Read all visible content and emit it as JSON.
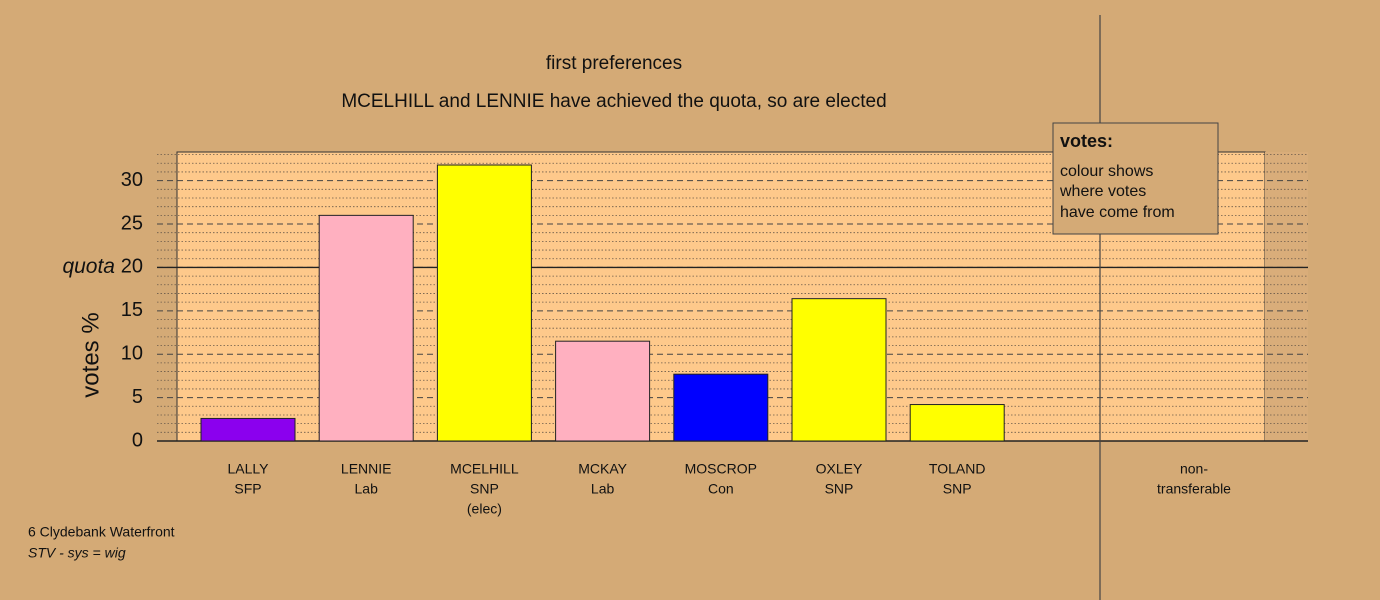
{
  "chart_data": {
    "type": "bar",
    "title": "first preferences",
    "subtitle": "MCELHILL and LENNIE have achieved the quota, so are elected",
    "y_label": "votes %",
    "categories": [
      [
        "LALLY",
        "SFP"
      ],
      [
        "LENNIE",
        "Lab"
      ],
      [
        "MCELHILL",
        "SNP",
        "(elec)"
      ],
      [
        "MCKAY",
        "Lab"
      ],
      [
        "MOSCROP",
        "Con"
      ],
      [
        "OXLEY",
        "SNP"
      ],
      [
        "TOLAND",
        "SNP"
      ],
      [
        "non-",
        "transferable"
      ]
    ],
    "values": [
      2.6,
      26.0,
      31.8,
      11.5,
      7.7,
      16.4,
      4.2,
      0
    ],
    "colors": [
      "#8b00ee",
      "#ffb0c0",
      "#ffff00",
      "#ffb0c0",
      "#0000ff",
      "#ffff00",
      "#ffff00",
      "#ffff00"
    ],
    "ylim": [
      0,
      33.3
    ],
    "yticks": [
      0,
      5,
      10,
      15,
      20,
      25,
      30
    ],
    "minor_yticks": [
      1,
      2,
      3,
      4,
      6,
      7,
      8,
      9,
      11,
      12,
      13,
      14,
      16,
      17,
      18,
      19,
      21,
      22,
      23,
      24,
      26,
      27,
      28,
      29,
      31,
      32,
      33
    ],
    "grid": true,
    "quota": {
      "value": 20,
      "label": "quota"
    },
    "legend": {
      "title": "votes:",
      "lines": [
        "colour shows",
        "where votes",
        "have come from"
      ]
    },
    "footnote": [
      "6 Clydebank Waterfront",
      "STV - sys = wig"
    ]
  }
}
